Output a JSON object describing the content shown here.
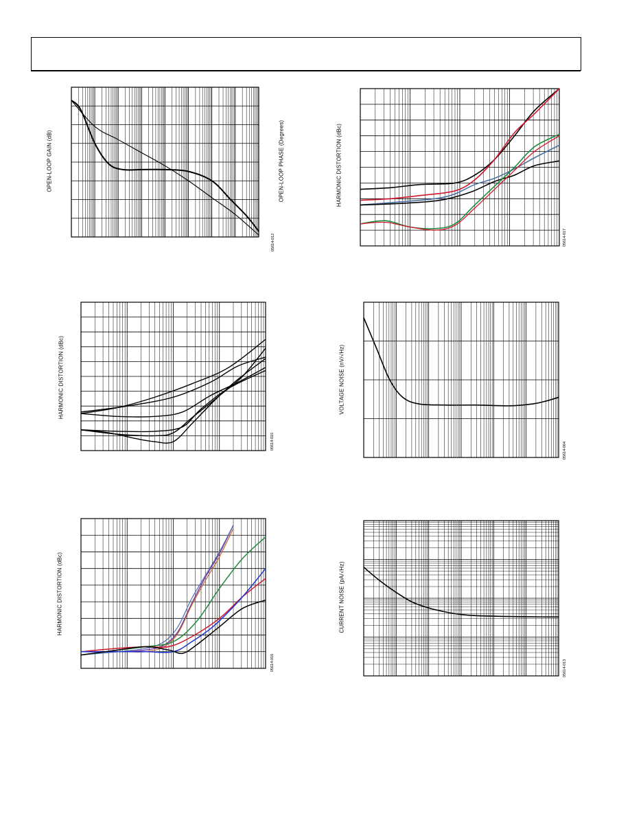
{
  "chart_data": [
    {
      "id": "open-loop",
      "type": "line",
      "y_axis_label": "OPEN-LOOP GAIN (dB)",
      "y2_axis_label": "OPEN-LOOP PHASE (Degrees)",
      "figure_code": "05614-012",
      "x_scale": "log",
      "xlim": [
        0,
        8
      ],
      "ylim": [
        0,
        8
      ],
      "grid": true,
      "series": [
        {
          "color": "#000000",
          "width": 1.1,
          "points": [
            [
              0,
              7.3
            ],
            [
              1,
              5.9
            ],
            [
              2,
              5.2
            ],
            [
              3,
              4.5
            ],
            [
              4,
              3.8
            ],
            [
              5,
              3.0
            ],
            [
              6,
              2.1
            ],
            [
              7,
              1.2
            ],
            [
              8,
              0.1
            ]
          ]
        },
        {
          "color": "#000000",
          "width": 2.0,
          "points": [
            [
              0,
              7.3
            ],
            [
              0.4,
              6.8
            ],
            [
              1,
              5.0
            ],
            [
              1.6,
              3.9
            ],
            [
              2.2,
              3.6
            ],
            [
              3,
              3.6
            ],
            [
              4,
              3.6
            ],
            [
              5,
              3.5
            ],
            [
              6,
              3.0
            ],
            [
              6.8,
              2.0
            ],
            [
              7.5,
              1.1
            ],
            [
              8,
              0.3
            ]
          ]
        }
      ]
    },
    {
      "id": "hd-top-right",
      "type": "line",
      "y_axis_label": "HARMONIC DISTORTION (dBc)",
      "figure_code": "05614-017",
      "x_scale": "log",
      "xlim": [
        0,
        4
      ],
      "ylim": [
        0,
        10
      ],
      "grid": true,
      "series": [
        {
          "color": "#000000",
          "width": 1.6,
          "points": [
            [
              0,
              3.6
            ],
            [
              0.6,
              3.7
            ],
            [
              1.2,
              3.9
            ],
            [
              1.9,
              4.0
            ],
            [
              2.3,
              4.5
            ],
            [
              2.7,
              5.5
            ],
            [
              3.1,
              7.0
            ],
            [
              3.5,
              8.6
            ],
            [
              4,
              10
            ]
          ]
        },
        {
          "color": "#d0142c",
          "width": 1.6,
          "points": [
            [
              0,
              2.9
            ],
            [
              0.6,
              3.0
            ],
            [
              1.2,
              3.2
            ],
            [
              1.9,
              3.5
            ],
            [
              2.3,
              4.2
            ],
            [
              2.7,
              5.5
            ],
            [
              3.1,
              7.2
            ],
            [
              3.5,
              8.4
            ],
            [
              4,
              10
            ]
          ]
        },
        {
          "color": "#4a6fa5",
          "width": 1.6,
          "points": [
            [
              0,
              2.6
            ],
            [
              0.8,
              2.8
            ],
            [
              1.5,
              3.0
            ],
            [
              1.9,
              3.3
            ],
            [
              2.3,
              3.9
            ],
            [
              2.7,
              4.3
            ],
            [
              3.1,
              4.9
            ],
            [
              3.5,
              5.6
            ],
            [
              4,
              6.4
            ]
          ]
        },
        {
          "color": "#000000",
          "width": 1.6,
          "points": [
            [
              0,
              2.6
            ],
            [
              0.8,
              2.7
            ],
            [
              1.6,
              2.9
            ],
            [
              2.2,
              3.4
            ],
            [
              2.7,
              4.1
            ],
            [
              3.1,
              4.5
            ],
            [
              3.5,
              5.1
            ],
            [
              4,
              5.4
            ]
          ]
        },
        {
          "color": "#1e8a3c",
          "width": 1.6,
          "points": [
            [
              0,
              1.4
            ],
            [
              0.5,
              1.6
            ],
            [
              1.0,
              1.2
            ],
            [
              1.5,
              1.1
            ],
            [
              1.9,
              1.4
            ],
            [
              2.3,
              2.6
            ],
            [
              2.7,
              3.8
            ],
            [
              3.1,
              5.0
            ],
            [
              3.5,
              6.3
            ],
            [
              4,
              7.1
            ]
          ]
        },
        {
          "color": "#d0142c",
          "width": 1.3,
          "points": [
            [
              0,
              1.4
            ],
            [
              0.5,
              1.5
            ],
            [
              1.0,
              1.2
            ],
            [
              1.5,
              1.0
            ],
            [
              1.9,
              1.3
            ],
            [
              2.3,
              2.4
            ],
            [
              2.7,
              3.6
            ],
            [
              3.1,
              4.8
            ],
            [
              3.5,
              6.0
            ],
            [
              4,
              7.0
            ]
          ]
        }
      ]
    },
    {
      "id": "hd-mid-left",
      "type": "line",
      "y_axis_label": "HARMONIC DISTORTION (dBc)",
      "figure_code": "05614-015",
      "x_scale": "log",
      "xlim": [
        0,
        4
      ],
      "ylim": [
        0,
        10
      ],
      "grid": true,
      "series": [
        {
          "color": "#000000",
          "width": 1.4,
          "points": [
            [
              0,
              2.5
            ],
            [
              0.8,
              2.9
            ],
            [
              1.6,
              3.6
            ],
            [
              2.4,
              4.5
            ],
            [
              3.2,
              5.6
            ],
            [
              4,
              7.5
            ]
          ]
        },
        {
          "color": "#000000",
          "width": 1.4,
          "points": [
            [
              0,
              2.6
            ],
            [
              1.0,
              3.0
            ],
            [
              2.0,
              3.6
            ],
            [
              2.8,
              4.6
            ],
            [
              3.4,
              5.7
            ],
            [
              4,
              6.3
            ]
          ]
        },
        {
          "color": "#000000",
          "width": 1.4,
          "points": [
            [
              0,
              2.5
            ],
            [
              0.8,
              2.3
            ],
            [
              1.6,
              2.3
            ],
            [
              2.2,
              2.6
            ],
            [
              2.8,
              3.7
            ],
            [
              3.4,
              4.6
            ],
            [
              4,
              5.6
            ]
          ]
        },
        {
          "color": "#000000",
          "width": 1.4,
          "points": [
            [
              0,
              1.4
            ],
            [
              0.8,
              1.3
            ],
            [
              1.6,
              1.3
            ],
            [
              2.2,
              1.6
            ],
            [
              2.6,
              2.8
            ],
            [
              3.2,
              4.2
            ],
            [
              4,
              5.4
            ]
          ]
        },
        {
          "color": "#000000",
          "width": 1.4,
          "points": [
            [
              0,
              1.4
            ],
            [
              0.8,
              1.1
            ],
            [
              1.6,
              1.0
            ],
            [
              2.0,
              1.2
            ],
            [
              2.4,
              2.2
            ],
            [
              3.0,
              3.7
            ],
            [
              3.5,
              5.0
            ],
            [
              4,
              6.9
            ]
          ]
        },
        {
          "color": "#000000",
          "width": 1.4,
          "points": [
            [
              0,
              1.4
            ],
            [
              0.6,
              1.2
            ],
            [
              1.2,
              0.8
            ],
            [
              1.6,
              0.6
            ],
            [
              2.0,
              0.6
            ],
            [
              2.4,
              1.8
            ],
            [
              2.9,
              3.4
            ],
            [
              3.4,
              4.8
            ],
            [
              4,
              6.2
            ]
          ]
        }
      ]
    },
    {
      "id": "voltage-noise",
      "type": "line",
      "y_axis_label": "VOLTAGE NOISE (nV/√Hz)",
      "figure_code": "05614-004",
      "x_scale": "log",
      "xlim": [
        0,
        6
      ],
      "ylim": [
        0,
        4
      ],
      "grid": true,
      "series": [
        {
          "color": "#000000",
          "width": 1.6,
          "points": [
            [
              0,
              3.6
            ],
            [
              0.4,
              2.8
            ],
            [
              0.8,
              2.0
            ],
            [
              1.2,
              1.55
            ],
            [
              1.7,
              1.38
            ],
            [
              2.5,
              1.35
            ],
            [
              3.5,
              1.35
            ],
            [
              4.5,
              1.33
            ],
            [
              5.2,
              1.38
            ],
            [
              5.6,
              1.45
            ],
            [
              6,
              1.55
            ]
          ]
        }
      ]
    },
    {
      "id": "hd-bottom-left",
      "type": "line",
      "y_axis_label": "HARMONIC DISTORTION (dBc)",
      "figure_code": "05614-016",
      "x_scale": "log",
      "xlim": [
        0,
        4
      ],
      "ylim": [
        0,
        9
      ],
      "grid": true,
      "series": [
        {
          "color": "#7b3fa0",
          "width": 1.5,
          "points": [
            [
              0,
              1.0
            ],
            [
              0.8,
              1.0
            ],
            [
              1.4,
              1.1
            ],
            [
              1.8,
              1.4
            ],
            [
              2.1,
              2.2
            ],
            [
              2.4,
              3.9
            ],
            [
              2.7,
              5.5
            ],
            [
              3.0,
              6.9
            ],
            [
              3.3,
              8.6
            ]
          ]
        },
        {
          "color": "#4f6fb3",
          "width": 1.2,
          "points": [
            [
              0,
              0.8
            ],
            [
              0.8,
              1.0
            ],
            [
              1.4,
              1.2
            ],
            [
              1.8,
              1.6
            ],
            [
              2.1,
              2.5
            ],
            [
              2.4,
              4.2
            ],
            [
              2.7,
              5.6
            ],
            [
              3.0,
              7.0
            ],
            [
              3.3,
              8.6
            ]
          ]
        },
        {
          "color": "#c4602a",
          "width": 1.2,
          "points": [
            [
              0,
              1.0
            ],
            [
              0.8,
              1.0
            ],
            [
              1.4,
              1.0
            ],
            [
              1.8,
              1.3
            ],
            [
              2.1,
              2.1
            ],
            [
              2.4,
              3.8
            ],
            [
              2.7,
              5.3
            ],
            [
              3.0,
              6.7
            ],
            [
              3.3,
              8.4
            ]
          ]
        },
        {
          "color": "#1e8a3c",
          "width": 1.5,
          "points": [
            [
              0,
              0.8
            ],
            [
              0.8,
              1.1
            ],
            [
              1.4,
              1.3
            ],
            [
              2.0,
              1.6
            ],
            [
              2.5,
              2.8
            ],
            [
              3.0,
              4.8
            ],
            [
              3.5,
              6.6
            ],
            [
              4,
              7.9
            ]
          ]
        },
        {
          "color": "#d0142c",
          "width": 1.5,
          "points": [
            [
              0,
              1.0
            ],
            [
              0.8,
              1.2
            ],
            [
              1.4,
              1.3
            ],
            [
              1.9,
              1.3
            ],
            [
              2.4,
              1.9
            ],
            [
              3.0,
              3.0
            ],
            [
              3.5,
              4.3
            ],
            [
              4,
              5.4
            ]
          ]
        },
        {
          "color": "#1c2fd0",
          "width": 1.5,
          "points": [
            [
              0,
              1.0
            ],
            [
              0.8,
              1.0
            ],
            [
              1.4,
              1.0
            ],
            [
              2.0,
              1.0
            ],
            [
              2.4,
              1.6
            ],
            [
              2.9,
              2.6
            ],
            [
              3.5,
              4.3
            ],
            [
              4,
              6.0
            ]
          ]
        },
        {
          "color": "#000000",
          "width": 1.5,
          "points": [
            [
              0,
              0.8
            ],
            [
              0.8,
              1.1
            ],
            [
              1.4,
              1.3
            ],
            [
              1.9,
              1.1
            ],
            [
              2.2,
              0.9
            ],
            [
              2.5,
              1.4
            ],
            [
              3.0,
              2.5
            ],
            [
              3.5,
              3.6
            ],
            [
              4,
              4.1
            ]
          ]
        }
      ]
    },
    {
      "id": "current-noise",
      "type": "line",
      "y_axis_label": "CURRENT NOISE (pA/√Hz)",
      "figure_code": "05614-013",
      "x_scale": "log",
      "y_scale": "log",
      "xlim": [
        0,
        6
      ],
      "ylim": [
        0,
        4
      ],
      "grid": true,
      "series": [
        {
          "color": "#000000",
          "width": 1.6,
          "points": [
            [
              0,
              2.8
            ],
            [
              0.5,
              2.45
            ],
            [
              1.0,
              2.15
            ],
            [
              1.5,
              1.9
            ],
            [
              2.0,
              1.75
            ],
            [
              2.5,
              1.65
            ],
            [
              3.0,
              1.58
            ],
            [
              3.5,
              1.55
            ],
            [
              4.5,
              1.53
            ],
            [
              5.5,
              1.52
            ],
            [
              6,
              1.52
            ]
          ]
        }
      ]
    }
  ]
}
